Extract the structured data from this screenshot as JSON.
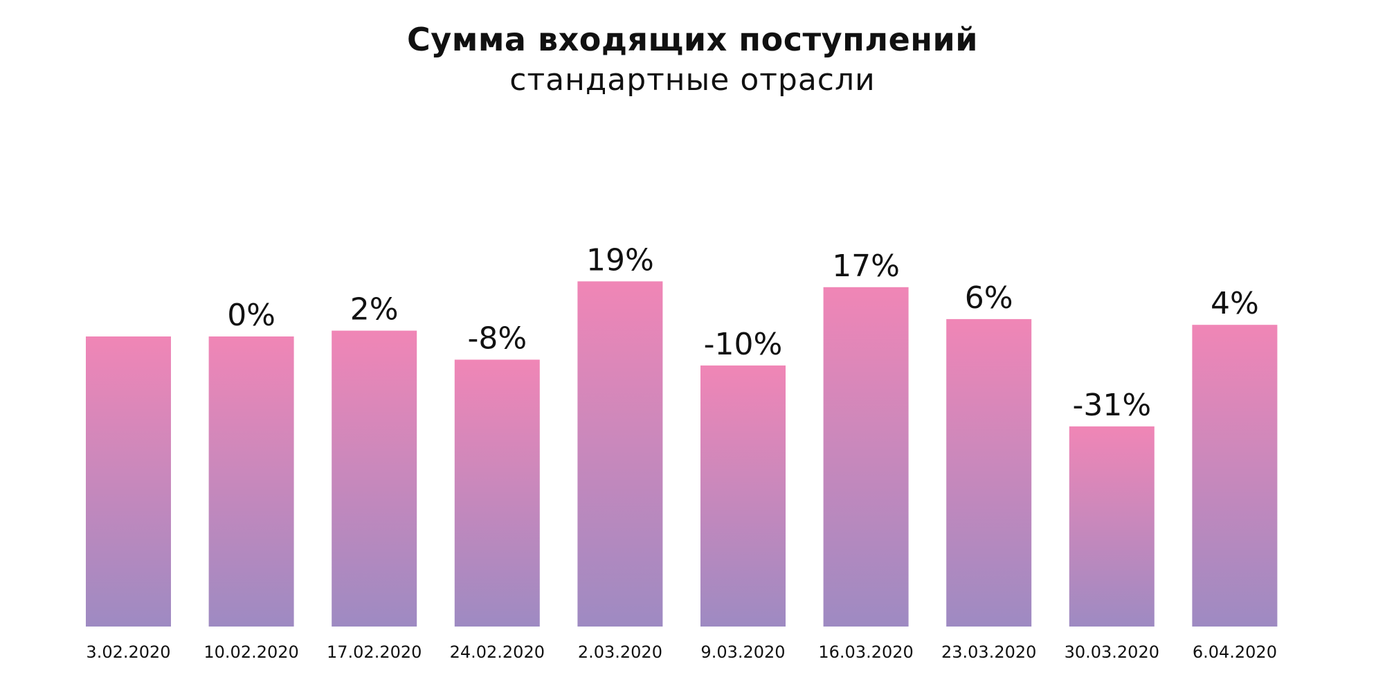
{
  "chart_data": {
    "type": "bar",
    "title": "Сумма входящих поступлений",
    "subtitle": "стандартные отрасли",
    "categories": [
      "3.02.2020",
      "10.02.2020",
      "17.02.2020",
      "24.02.2020",
      "2.03.2020",
      "9.03.2020",
      "16.03.2020",
      "23.03.2020",
      "30.03.2020",
      "6.04.2020"
    ],
    "values": [
      100,
      100,
      102,
      92,
      119,
      90,
      117,
      106,
      69,
      104
    ],
    "data_labels": [
      "",
      "0%",
      "2%",
      "-8%",
      "19%",
      "-10%",
      "17%",
      "6%",
      "-31%",
      "4%"
    ],
    "ylim": [
      0,
      125
    ],
    "grid": false,
    "legend": "none",
    "colors": {
      "bar_top": "#f086b6",
      "bar_bottom": "#9e8ac2"
    }
  }
}
